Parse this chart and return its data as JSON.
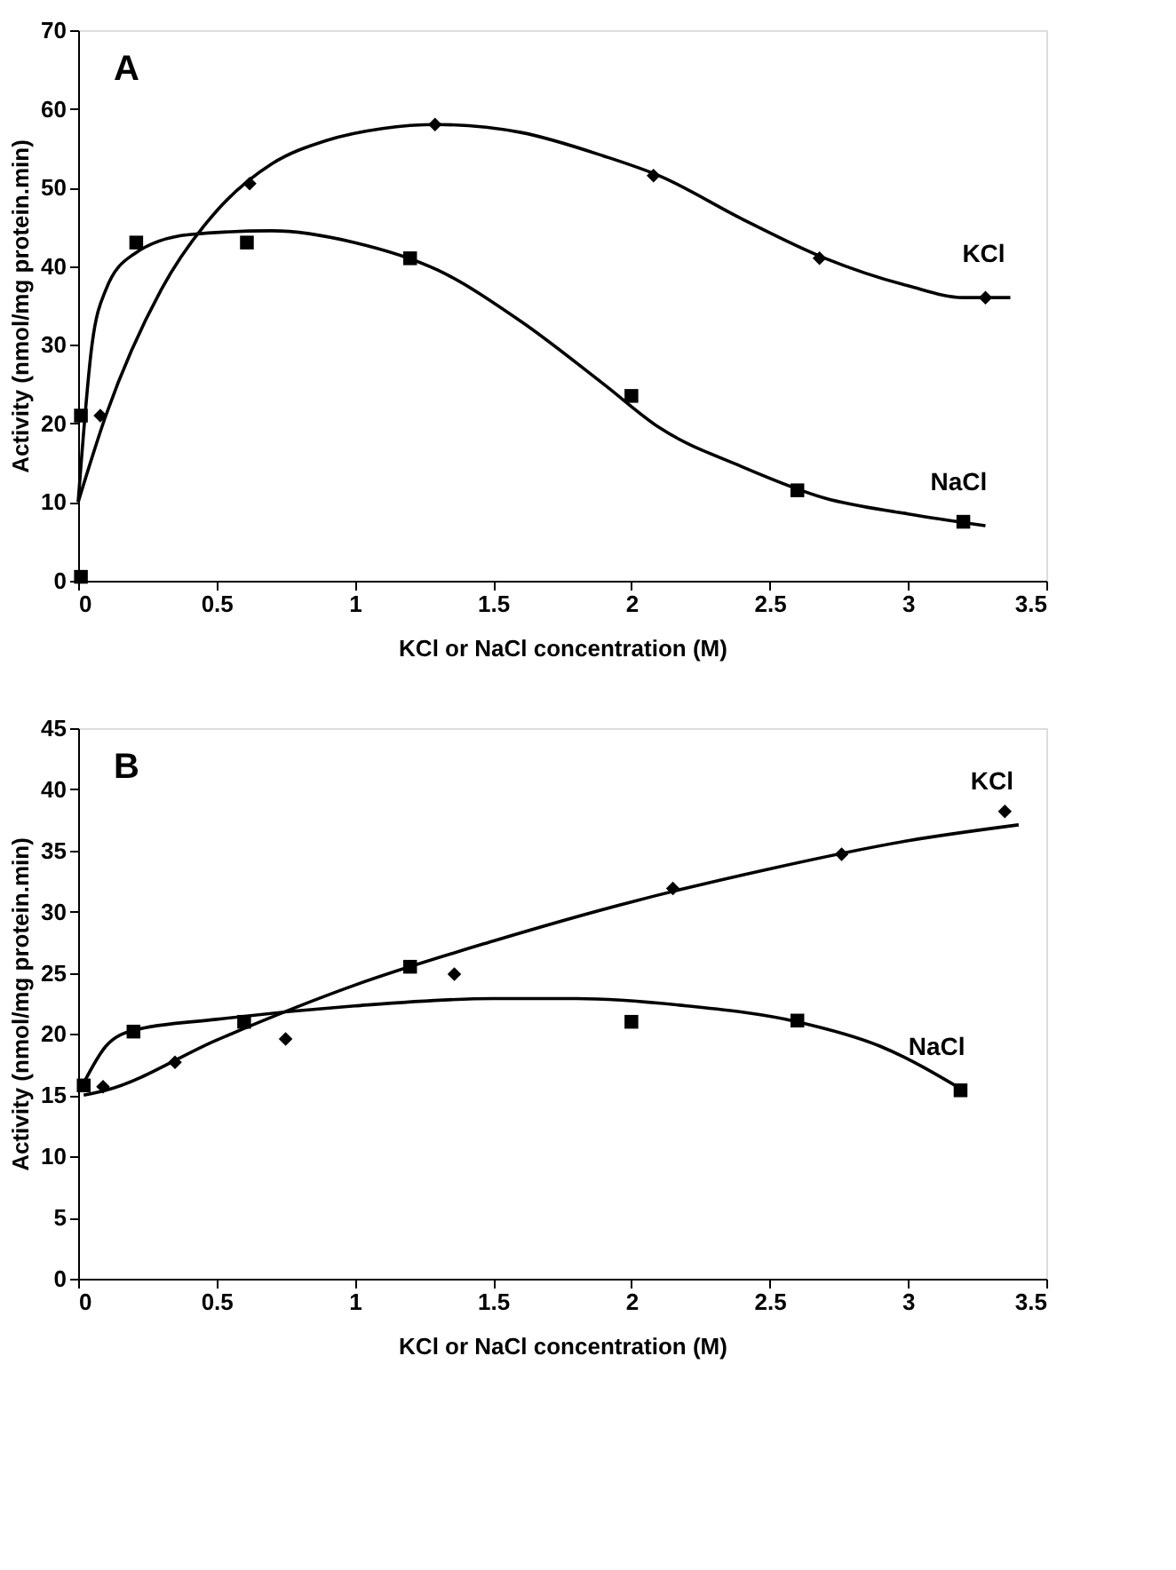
{
  "chart_data": [
    {
      "type": "scatter",
      "title": "A",
      "xlabel": "KCl or NaCl concentration (M)",
      "ylabel": "Activity (nmol/mg protein.min)",
      "xlim": [
        0,
        3.5
      ],
      "xticks": [
        0,
        0.5,
        1,
        1.5,
        2,
        2.5,
        3,
        3.5
      ],
      "ylim": [
        0,
        70
      ],
      "yticks": [
        0,
        10,
        20,
        30,
        40,
        50,
        60,
        70
      ],
      "grid": false,
      "legend": false,
      "series": [
        {
          "marker": "diamond",
          "color": "#000000",
          "x": [
            0.08,
            0.62,
            1.29,
            2.08,
            2.68,
            3.28
          ],
          "values": [
            21,
            50.5,
            58,
            51.5,
            41,
            36
          ]
        },
        {
          "marker": "square",
          "color": "#000000",
          "x": [
            0.01,
            0.01,
            0.21,
            0.61,
            1.2,
            2.0,
            2.6,
            3.2
          ],
          "values": [
            0.5,
            21,
            43,
            43,
            41,
            23.5,
            11.5,
            7.5
          ]
        },
        {
          "type": "line",
          "name": "KCl",
          "marker": "none",
          "color": "#000000",
          "x": [
            0,
            0.1,
            0.3,
            0.5,
            0.7,
            0.9,
            1.1,
            1.3,
            1.6,
            1.9,
            2.1,
            2.4,
            2.7,
            3.0,
            3.2,
            3.37
          ],
          "values": [
            10,
            21,
            37,
            47,
            53,
            56,
            57.5,
            58,
            57,
            54,
            51.5,
            46,
            41,
            37.5,
            36,
            36
          ]
        },
        {
          "type": "line",
          "name": "NaCl",
          "marker": "none",
          "color": "#000000",
          "x": [
            0,
            0.05,
            0.1,
            0.2,
            0.4,
            0.7,
            1.0,
            1.3,
            1.6,
            1.9,
            2.1,
            2.4,
            2.7,
            3.0,
            3.28
          ],
          "values": [
            10,
            30,
            37,
            41.5,
            44,
            44.5,
            43,
            39.5,
            33,
            25,
            19.5,
            14.5,
            10.5,
            8.5,
            7
          ]
        }
      ]
    },
    {
      "type": "scatter",
      "title": "B",
      "xlabel": "KCl or NaCl concentration (M)",
      "ylabel": "Activity (nmol/mg protein.min)",
      "xlim": [
        0,
        3.5
      ],
      "xticks": [
        0,
        0.5,
        1,
        1.5,
        2,
        2.5,
        3,
        3.5
      ],
      "ylim": [
        0,
        45
      ],
      "yticks": [
        0,
        5,
        10,
        15,
        20,
        25,
        30,
        35,
        40,
        45
      ],
      "grid": false,
      "legend": false,
      "series": [
        {
          "marker": "diamond",
          "color": "#000000",
          "x": [
            0.09,
            0.35,
            0.75,
            1.36,
            2.15,
            2.76,
            3.35
          ],
          "values": [
            15.7,
            17.7,
            19.6,
            24.9,
            31.9,
            34.7,
            38.2
          ]
        },
        {
          "marker": "square",
          "color": "#000000",
          "x": [
            0.02,
            0.2,
            0.6,
            1.2,
            2.0,
            2.6,
            3.19
          ],
          "values": [
            15.8,
            20.2,
            21,
            25.5,
            21,
            21.1,
            15.4
          ]
        },
        {
          "type": "line",
          "name": "KCl",
          "marker": "none",
          "color": "#000000",
          "x": [
            0.02,
            0.1,
            0.5,
            1.0,
            1.5,
            2.0,
            2.5,
            3.0,
            3.4
          ],
          "values": [
            15,
            15.4,
            19.5,
            24,
            27.6,
            30.8,
            33.5,
            35.8,
            37.1
          ]
        },
        {
          "type": "line",
          "name": "NaCl",
          "marker": "none",
          "color": "#000000",
          "x": [
            0.02,
            0.1,
            0.2,
            0.5,
            1.0,
            1.5,
            1.8,
            2.2,
            2.6,
            2.9,
            3.2
          ],
          "values": [
            16,
            19,
            20.3,
            21.2,
            22.3,
            22.9,
            22.9,
            22.3,
            21,
            19,
            15.4
          ]
        }
      ]
    }
  ]
}
